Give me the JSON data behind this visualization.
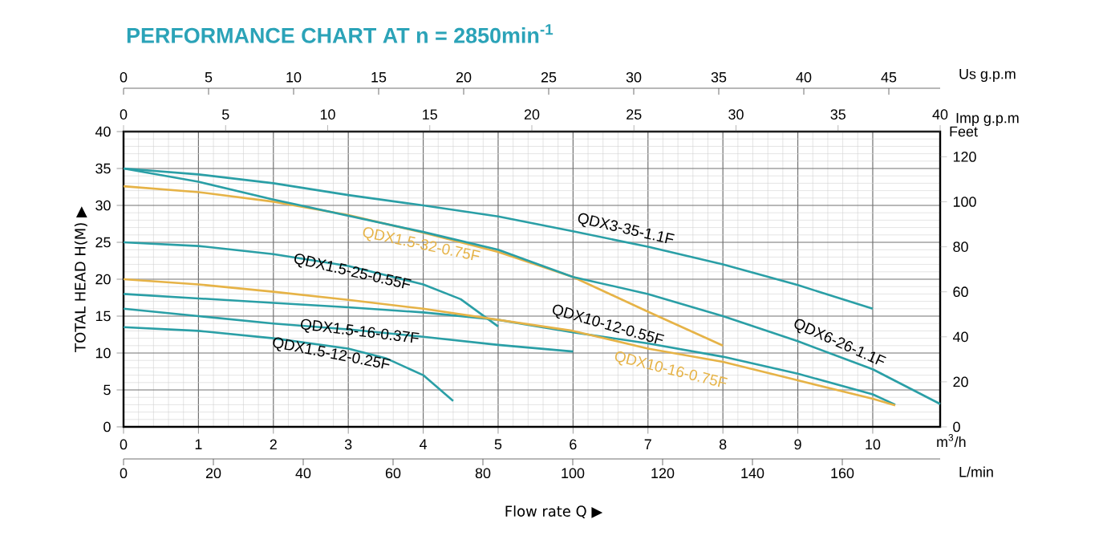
{
  "chart_data": {
    "type": "line",
    "title": "PERFORMANCE CHART AT n = 2850min$^{-1}$",
    "xlabel": "m$^{3}$/h",
    "ylabel": "TOTAL HEAD H(M) ▶",
    "y2label": "Feet",
    "x2label": "Imp g.p.m",
    "xlim": [
      0,
      10.9
    ],
    "xticks": [
      0,
      1,
      2,
      3,
      4,
      5,
      6,
      7,
      8,
      9,
      10
    ],
    "ylim": [
      0,
      40
    ],
    "yticks": [
      0,
      5,
      10,
      15,
      20,
      25,
      30,
      35,
      40
    ],
    "y2lim": [
      0,
      131.2
    ],
    "y2ticks": [
      0,
      20,
      40,
      60,
      80,
      100,
      120
    ],
    "x2lim": [
      0,
      40
    ],
    "x2ticks": [
      0,
      5,
      10,
      15,
      20,
      25,
      30,
      35,
      40
    ],
    "grid": true,
    "marker": "none",
    "line_style": "solid",
    "annotations": [
      "Flow rate Q ▶",
      "Us g.p.m",
      "0",
      "5",
      "10",
      "15",
      "20",
      "25",
      "30",
      "35",
      "40",
      "45",
      "L/min",
      "0",
      "20",
      "40",
      "60",
      "80",
      "100",
      "120",
      "140",
      "160"
    ],
    "series": [
      {
        "name": "QDX3-35-1.1F",
        "color": "#2a9fa6",
        "x": [
          0,
          1,
          2,
          3,
          4,
          5,
          6,
          7,
          8,
          9,
          10
        ],
        "values": [
          35,
          34.2,
          33,
          31.4,
          30,
          28.5,
          26.5,
          24.4,
          22,
          19.2,
          16
        ]
      },
      {
        "name": "QDX1.5-32-0.75F",
        "color": "#e6b347",
        "x": [
          0,
          1,
          2,
          3,
          4,
          5,
          6,
          7,
          8
        ],
        "values": [
          32.6,
          31.8,
          30.5,
          28.7,
          26.3,
          23.7,
          20.3,
          15.6,
          11
        ]
      },
      {
        "name": "QDX1.5-25-0.55F",
        "color": "#2a9fa6",
        "x": [
          0,
          1,
          2,
          3,
          4,
          4.5,
          5
        ],
        "values": [
          25,
          24.5,
          23.4,
          21.8,
          19.3,
          17.3,
          13.6
        ]
      },
      {
        "name": "QDX10-12-0.55F",
        "color": "#2a9fa6",
        "x": [
          0,
          1,
          2,
          3,
          4,
          5,
          6,
          7,
          8,
          9,
          10,
          10.3
        ],
        "values": [
          18,
          17.4,
          16.8,
          16.2,
          15.5,
          14.5,
          12.8,
          11.3,
          9.5,
          7.2,
          4.4,
          3
        ]
      },
      {
        "name": "QDX10-16-0.75F",
        "color": "#e6b347",
        "x": [
          0,
          1,
          2,
          3,
          4,
          5,
          6,
          7,
          8,
          9,
          10,
          10.3
        ],
        "values": [
          20,
          19.3,
          18.3,
          17.2,
          16,
          14.5,
          13,
          10.6,
          8.8,
          6.3,
          3.8,
          2.9
        ]
      },
      {
        "name": "QDX6-26-1.1F",
        "color": "#2a9fa6",
        "x": [
          0,
          1,
          2,
          3,
          4,
          5,
          6,
          7,
          8,
          9,
          10,
          10.9
        ],
        "values": [
          35,
          33.2,
          30.8,
          28.6,
          26.4,
          24,
          20.3,
          18,
          15,
          11.6,
          7.8,
          3.1
        ]
      },
      {
        "name": "QDX1.5-16-0.37F",
        "color": "#2a9fa6",
        "x": [
          0,
          1,
          2,
          3,
          4,
          5,
          6
        ],
        "values": [
          16,
          15,
          14,
          13.2,
          12.2,
          11.1,
          10.2
        ]
      },
      {
        "name": "QDX1.5-12-0.25F",
        "color": "#2a9fa6",
        "x": [
          0,
          1,
          2,
          3,
          3.5,
          4,
          4.4
        ],
        "values": [
          13.5,
          13,
          12,
          10.6,
          9.3,
          7,
          3.5
        ]
      }
    ]
  }
}
